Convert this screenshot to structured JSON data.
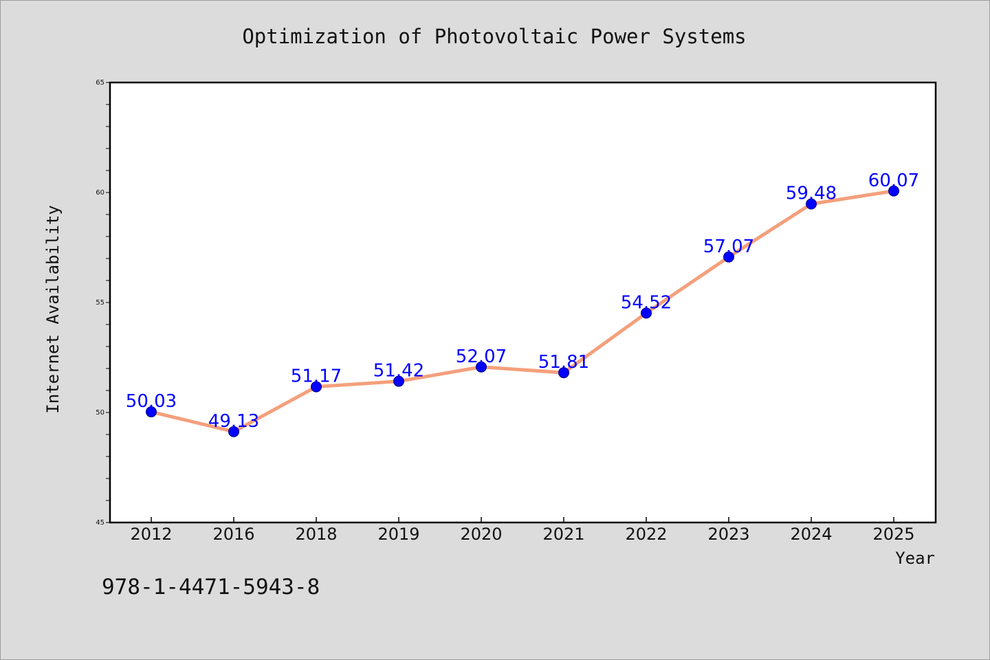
{
  "colors": {
    "background": "#dcdcdc",
    "plot_background": "#ffffff",
    "line": "#f4a07c",
    "marker": "#0000ff",
    "data_label": "#0000ff"
  },
  "footer": {
    "isbn": "978-1-4471-5943-8"
  },
  "chart_data": {
    "type": "line",
    "title": "Optimization of Photovoltaic Power Systems",
    "xlabel": "Year",
    "ylabel": "Internet Availability",
    "categories": [
      "2012",
      "2016",
      "2018",
      "2019",
      "2020",
      "2021",
      "2022",
      "2023",
      "2024",
      "2025"
    ],
    "series": [
      {
        "values": [
          50.03,
          49.13,
          51.17,
          51.42,
          52.07,
          51.81,
          54.52,
          57.07,
          59.48,
          60.07
        ],
        "labels": [
          "50.03",
          "49.13",
          "51.17",
          "51.42",
          "52.07",
          "51.81",
          "54.52",
          "57.07",
          "59.48",
          "60.07"
        ]
      }
    ],
    "ylim": [
      45,
      65
    ],
    "yticks": [
      "45",
      "50",
      "55",
      "60",
      "65"
    ],
    "grid": false,
    "legend": "none",
    "marker": "circle"
  }
}
